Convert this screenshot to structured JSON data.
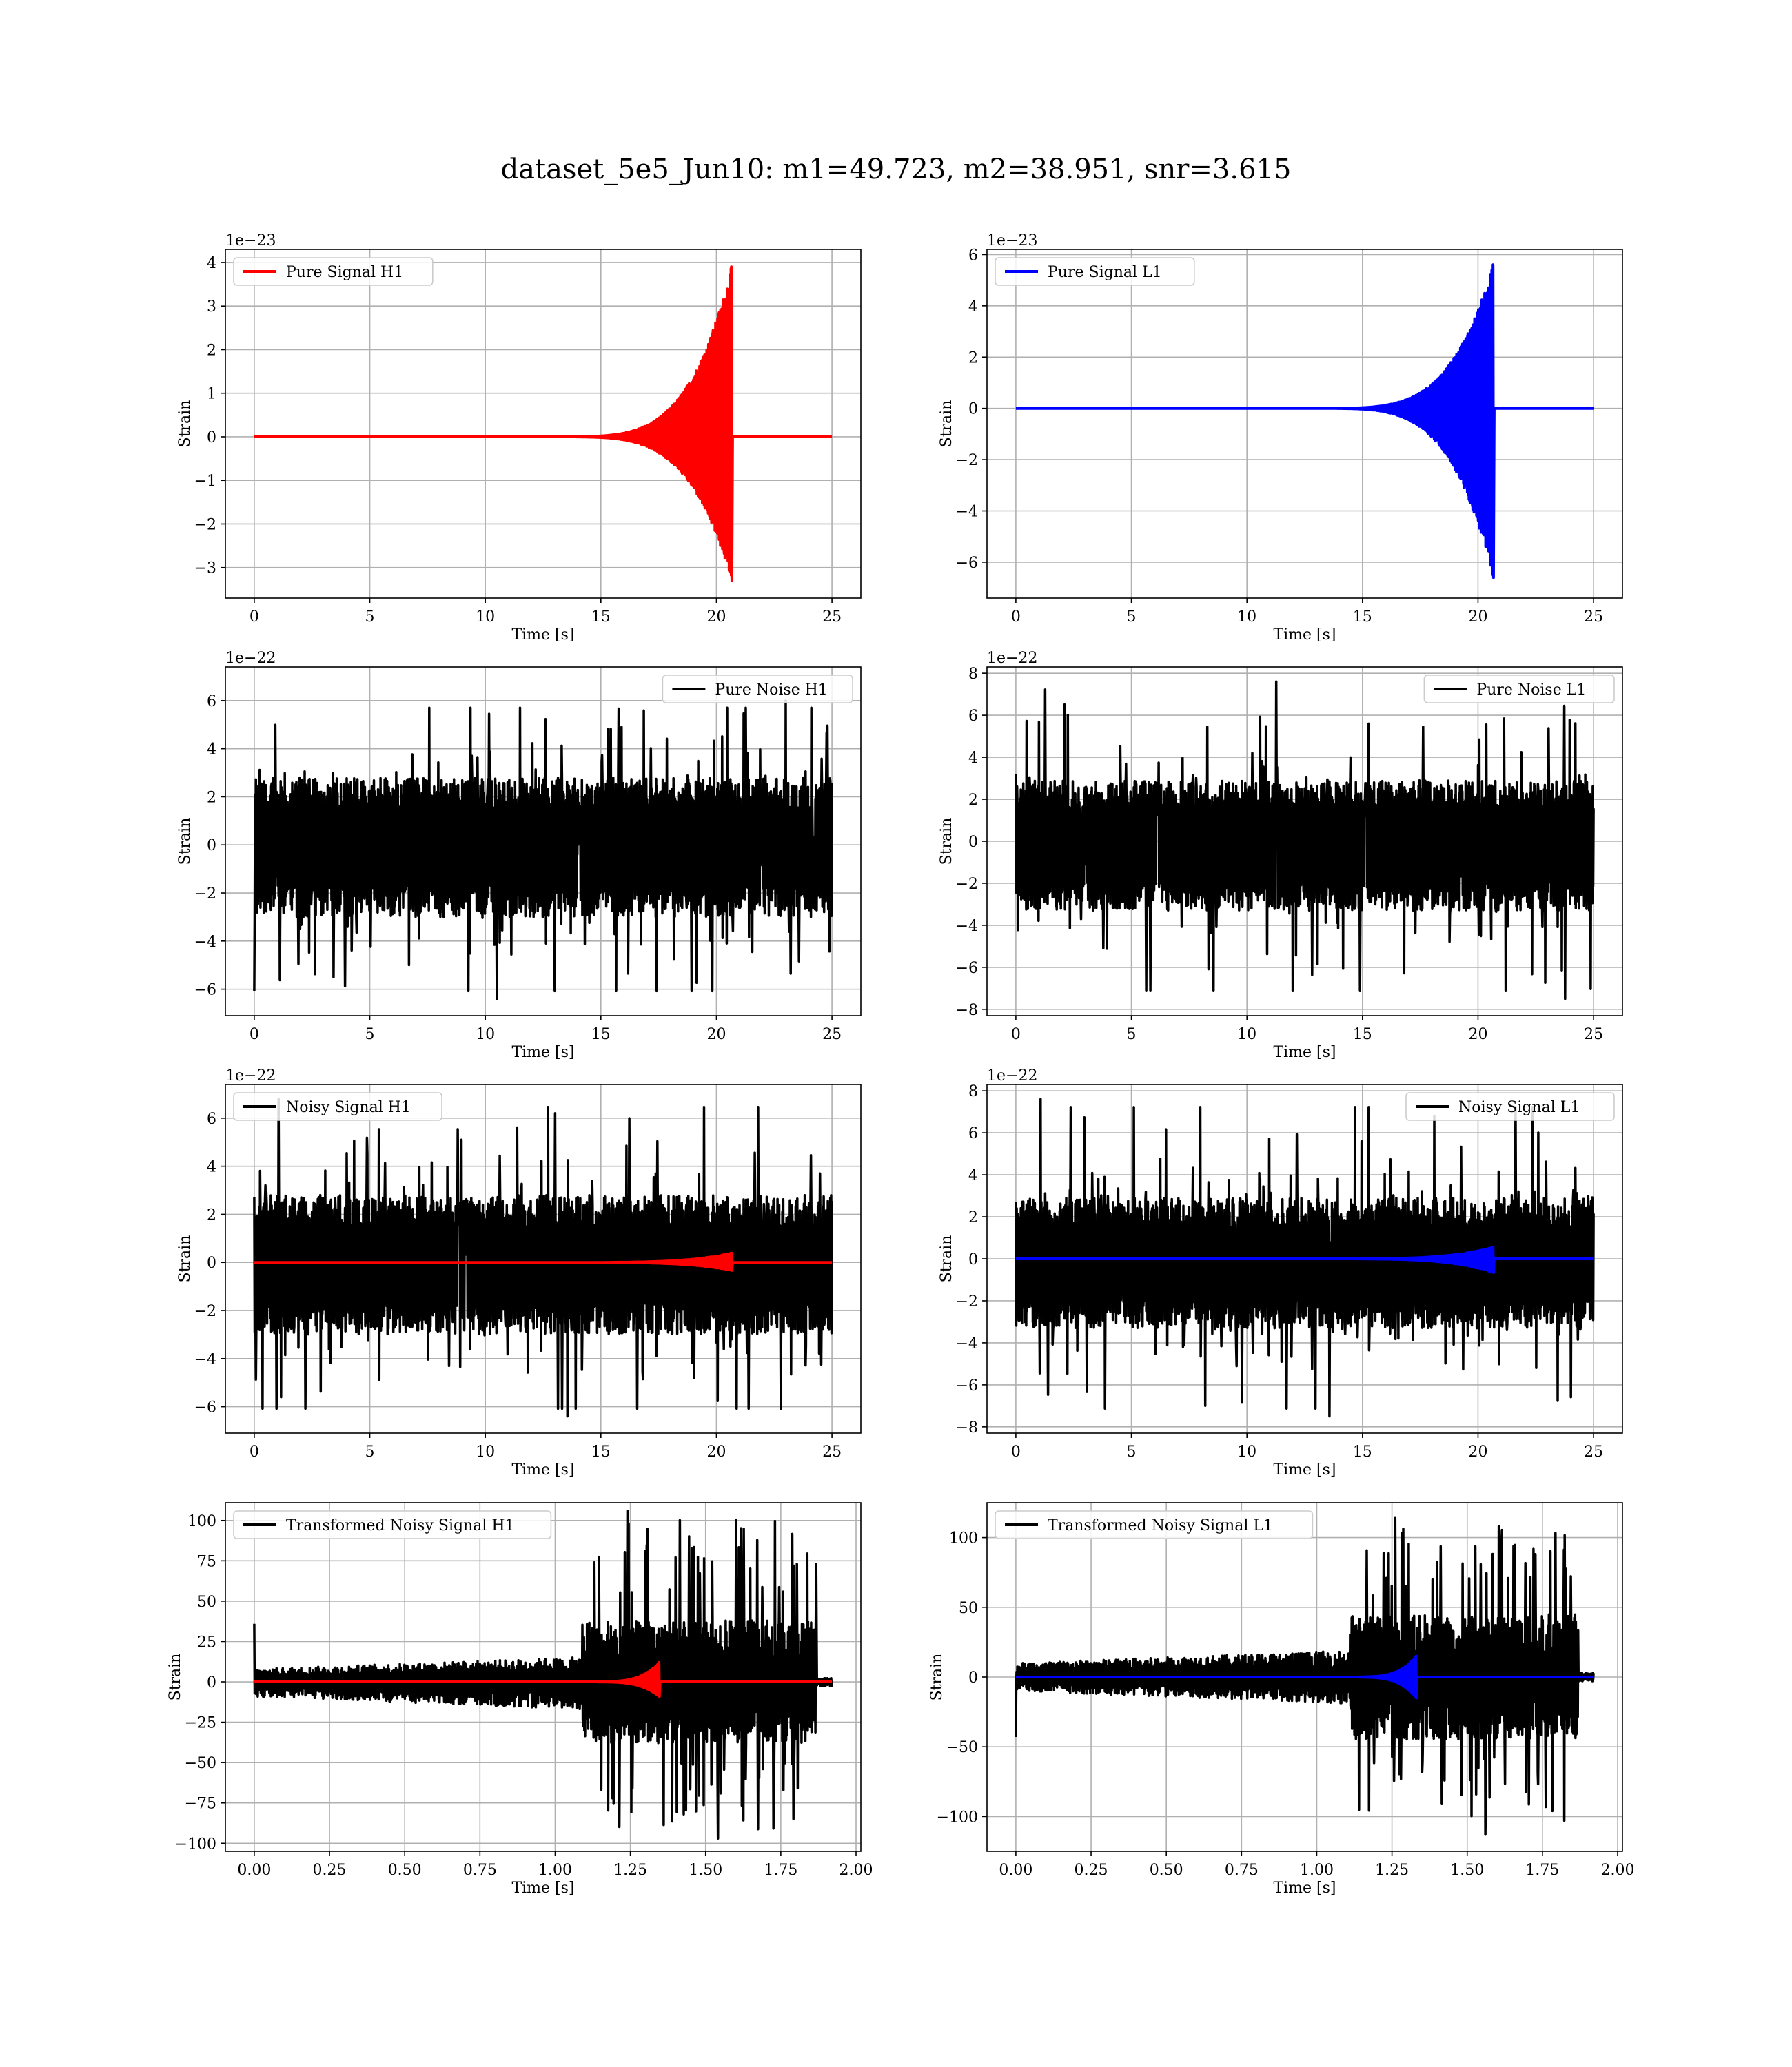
{
  "figure_title": "dataset_5e5_Jun10: m1=49.723, m2=38.951, snr=3.615",
  "chart_data": [
    {
      "id": "h1_signal",
      "type": "line",
      "legend": "Pure Signal H1",
      "legend_loc": "upper left",
      "xlabel": "Time [s]",
      "ylabel": "Strain",
      "offset_text": "1e−23",
      "xlim": [
        -1.25,
        26.25
      ],
      "ylim": [
        -3.7,
        4.3
      ],
      "xticks": [
        0,
        5,
        10,
        15,
        20,
        25
      ],
      "xtick_labels": [
        "0",
        "5",
        "10",
        "15",
        "20",
        "25"
      ],
      "yticks": [
        -3,
        -2,
        -1,
        0,
        1,
        2,
        3,
        4
      ],
      "ytick_labels": [
        "−3",
        "−2",
        "−1",
        "0",
        "1",
        "2",
        "3",
        "4"
      ],
      "grid": true,
      "series": [
        {
          "name": "Pure Signal H1",
          "kind": "chirp",
          "color": "#ff0000",
          "x": [
            0,
            25
          ],
          "baseline": 0,
          "t_merger": 20.65,
          "peak_max": 3.9,
          "peak_min": -3.3,
          "envelope_start": 12.5
        }
      ]
    },
    {
      "id": "l1_signal",
      "type": "line",
      "legend": "Pure Signal L1",
      "legend_loc": "upper left",
      "xlabel": "Time [s]",
      "ylabel": "Strain",
      "offset_text": "1e−23",
      "xlim": [
        -1.25,
        26.25
      ],
      "ylim": [
        -7.4,
        6.2
      ],
      "xticks": [
        0,
        5,
        10,
        15,
        20,
        25
      ],
      "xtick_labels": [
        "0",
        "5",
        "10",
        "15",
        "20",
        "25"
      ],
      "yticks": [
        -6,
        -4,
        -2,
        0,
        2,
        4,
        6
      ],
      "ytick_labels": [
        "−6",
        "−4",
        "−2",
        "0",
        "2",
        "4",
        "6"
      ],
      "grid": true,
      "series": [
        {
          "name": "Pure Signal L1",
          "kind": "chirp",
          "color": "#0000ff",
          "x": [
            0,
            25
          ],
          "baseline": 0,
          "t_merger": 20.65,
          "peak_max": 5.6,
          "peak_min": -6.6,
          "envelope_start": 12.5
        }
      ]
    },
    {
      "id": "h1_noise",
      "type": "line",
      "legend": "Pure Noise H1",
      "legend_loc": "upper right",
      "xlabel": "Time [s]",
      "ylabel": "Strain",
      "offset_text": "1e−22",
      "xlim": [
        -1.25,
        26.25
      ],
      "ylim": [
        -7.1,
        7.4
      ],
      "xticks": [
        0,
        5,
        10,
        15,
        20,
        25
      ],
      "xtick_labels": [
        "0",
        "5",
        "10",
        "15",
        "20",
        "25"
      ],
      "yticks": [
        -6,
        -4,
        -2,
        0,
        2,
        4,
        6
      ],
      "ytick_labels": [
        "−6",
        "−4",
        "−2",
        "0",
        "2",
        "4",
        "6"
      ],
      "grid": true,
      "series": [
        {
          "name": "Pure Noise H1",
          "kind": "noise",
          "color": "#000000",
          "x": [
            0,
            25
          ],
          "band": [
            -3.0,
            2.8
          ],
          "max": 6.0,
          "min": -6.4
        }
      ]
    },
    {
      "id": "l1_noise",
      "type": "line",
      "legend": "Pure Noise L1",
      "legend_loc": "upper right",
      "xlabel": "Time [s]",
      "ylabel": "Strain",
      "offset_text": "1e−22",
      "xlim": [
        -1.25,
        26.25
      ],
      "ylim": [
        -8.3,
        8.3
      ],
      "xticks": [
        0,
        5,
        10,
        15,
        20,
        25
      ],
      "xtick_labels": [
        "0",
        "5",
        "10",
        "15",
        "20",
        "25"
      ],
      "yticks": [
        -8,
        -6,
        -4,
        -2,
        0,
        2,
        4,
        6,
        8
      ],
      "ytick_labels": [
        "−8",
        "−6",
        "−4",
        "−2",
        "0",
        "2",
        "4",
        "6",
        "8"
      ],
      "grid": true,
      "series": [
        {
          "name": "Pure Noise L1",
          "kind": "noise",
          "color": "#000000",
          "x": [
            0,
            25
          ],
          "band": [
            -3.3,
            2.9
          ],
          "max": 7.6,
          "min": -7.5
        }
      ]
    },
    {
      "id": "h1_noisy",
      "type": "line",
      "legend": "Noisy Signal H1",
      "legend_loc": "upper left",
      "xlabel": "Time [s]",
      "ylabel": "Strain",
      "offset_text": "1e−22",
      "xlim": [
        -1.25,
        26.25
      ],
      "ylim": [
        -7.1,
        7.4
      ],
      "xticks": [
        0,
        5,
        10,
        15,
        20,
        25
      ],
      "xtick_labels": [
        "0",
        "5",
        "10",
        "15",
        "20",
        "25"
      ],
      "yticks": [
        -6,
        -4,
        -2,
        0,
        2,
        4,
        6
      ],
      "ytick_labels": [
        "−6",
        "−4",
        "−2",
        "0",
        "2",
        "4",
        "6"
      ],
      "grid": true,
      "series": [
        {
          "name": "Noisy Signal H1",
          "kind": "noise",
          "color": "#000000",
          "x": [
            0,
            25
          ],
          "band": [
            -3.0,
            2.8
          ],
          "max": 6.8,
          "min": -6.4
        },
        {
          "name": "signal",
          "kind": "chirp",
          "color": "#ff0000",
          "x": [
            0,
            25
          ],
          "baseline": 0,
          "t_merger": 20.65,
          "peak_max": 0.39,
          "peak_min": -0.33,
          "envelope_start": 12.5
        }
      ]
    },
    {
      "id": "l1_noisy",
      "type": "line",
      "legend": "Noisy Signal L1",
      "legend_loc": "upper right",
      "xlabel": "Time [s]",
      "ylabel": "Strain",
      "offset_text": "1e−22",
      "xlim": [
        -1.25,
        26.25
      ],
      "ylim": [
        -8.3,
        8.3
      ],
      "xticks": [
        0,
        5,
        10,
        15,
        20,
        25
      ],
      "xtick_labels": [
        "0",
        "5",
        "10",
        "15",
        "20",
        "25"
      ],
      "yticks": [
        -8,
        -6,
        -4,
        -2,
        0,
        2,
        4,
        6,
        8
      ],
      "ytick_labels": [
        "−8",
        "−6",
        "−4",
        "−2",
        "0",
        "2",
        "4",
        "6",
        "8"
      ],
      "grid": true,
      "series": [
        {
          "name": "Noisy Signal L1",
          "kind": "noise",
          "color": "#000000",
          "x": [
            0,
            25
          ],
          "band": [
            -3.3,
            2.9
          ],
          "max": 7.6,
          "min": -7.5
        },
        {
          "name": "signal",
          "kind": "chirp",
          "color": "#0000ff",
          "x": [
            0,
            25
          ],
          "baseline": 0,
          "t_merger": 20.65,
          "peak_max": 0.56,
          "peak_min": -0.66,
          "envelope_start": 12.5
        }
      ]
    },
    {
      "id": "h1_transformed",
      "type": "line",
      "legend": "Transformed Noisy Signal H1",
      "legend_loc": "upper left",
      "xlabel": "Time [s]",
      "ylabel": "Strain",
      "offset_text": "",
      "xlim": [
        -0.096,
        2.016
      ],
      "ylim": [
        -105,
        111
      ],
      "xticks": [
        0,
        0.25,
        0.5,
        0.75,
        1.0,
        1.25,
        1.5,
        1.75,
        2.0
      ],
      "xtick_labels": [
        "0.00",
        "0.25",
        "0.50",
        "0.75",
        "1.00",
        "1.25",
        "1.50",
        "1.75",
        "2.00"
      ],
      "yticks": [
        -100,
        -75,
        -50,
        -25,
        0,
        25,
        50,
        75,
        100
      ],
      "ytick_labels": [
        "−100",
        "−75",
        "−50",
        "−25",
        "0",
        "25",
        "50",
        "75",
        "100"
      ],
      "grid": true,
      "series": [
        {
          "name": "Transformed Noisy Signal H1",
          "kind": "whitened",
          "color": "#000000",
          "x": [
            0,
            1.92
          ],
          "t_jump": 1.09,
          "t_end": 1.87,
          "low_band": [
            -9,
            8
          ],
          "high_band": [
            -38,
            38
          ],
          "max": 106,
          "min": -97,
          "spike_start": 36
        },
        {
          "name": "signal",
          "kind": "chirp",
          "color": "#ff0000",
          "x": [
            0,
            1.92
          ],
          "baseline": 0,
          "t_merger": 1.345,
          "peak_max": 12,
          "peak_min": -9,
          "envelope_start": 1.08
        }
      ]
    },
    {
      "id": "l1_transformed",
      "type": "line",
      "legend": "Transformed Noisy Signal L1",
      "legend_loc": "upper left",
      "xlabel": "Time [s]",
      "ylabel": "Strain",
      "offset_text": "",
      "xlim": [
        -0.096,
        2.016
      ],
      "ylim": [
        -125,
        125
      ],
      "xticks": [
        0,
        0.25,
        0.5,
        0.75,
        1.0,
        1.25,
        1.5,
        1.75,
        2.0
      ],
      "xtick_labels": [
        "0.00",
        "0.25",
        "0.50",
        "0.75",
        "1.00",
        "1.25",
        "1.50",
        "1.75",
        "2.00"
      ],
      "yticks": [
        -100,
        -50,
        0,
        50,
        100
      ],
      "ytick_labels": [
        "−100",
        "−50",
        "0",
        "50",
        "100"
      ],
      "grid": true,
      "series": [
        {
          "name": "Transformed Noisy Signal L1",
          "kind": "whitened",
          "color": "#000000",
          "x": [
            0,
            1.92
          ],
          "t_jump": 1.11,
          "t_end": 1.87,
          "low_band": [
            -10,
            10
          ],
          "high_band": [
            -45,
            45
          ],
          "max": 114,
          "min": -113,
          "spike_start": -43
        },
        {
          "name": "signal",
          "kind": "chirp",
          "color": "#0000ff",
          "x": [
            0,
            1.92
          ],
          "baseline": 0,
          "t_merger": 1.33,
          "peak_max": 15,
          "peak_min": -15,
          "envelope_start": 1.08
        }
      ]
    }
  ]
}
